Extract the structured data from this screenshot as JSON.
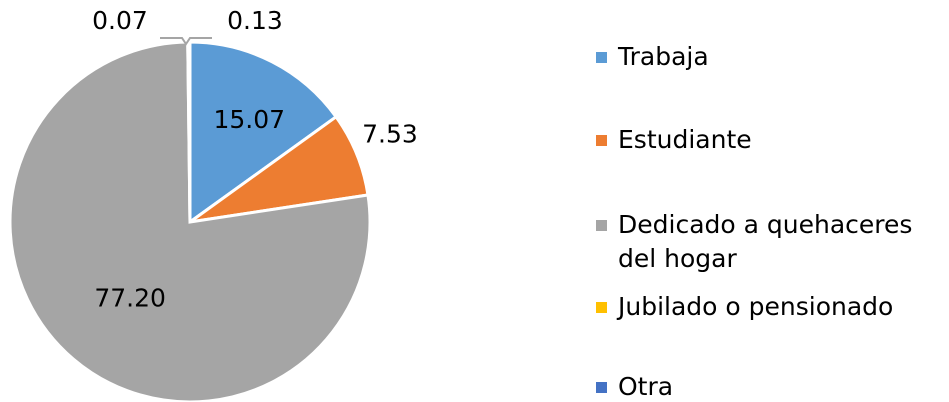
{
  "chart_data": {
    "type": "pie",
    "categories": [
      "Trabaja",
      "Estudiante",
      "Dedicado a quehaceres del hogar",
      "Jubilado o pensionado",
      "Otra"
    ],
    "values": [
      15.07,
      7.53,
      77.2,
      0.07,
      0.13
    ],
    "value_labels": [
      "15.07",
      "7.53",
      "77.20",
      "0.07",
      "0.13"
    ],
    "colors": [
      "#5b9bd5",
      "#ed7d31",
      "#a5a5a5",
      "#ffc000",
      "#4472c4"
    ]
  }
}
